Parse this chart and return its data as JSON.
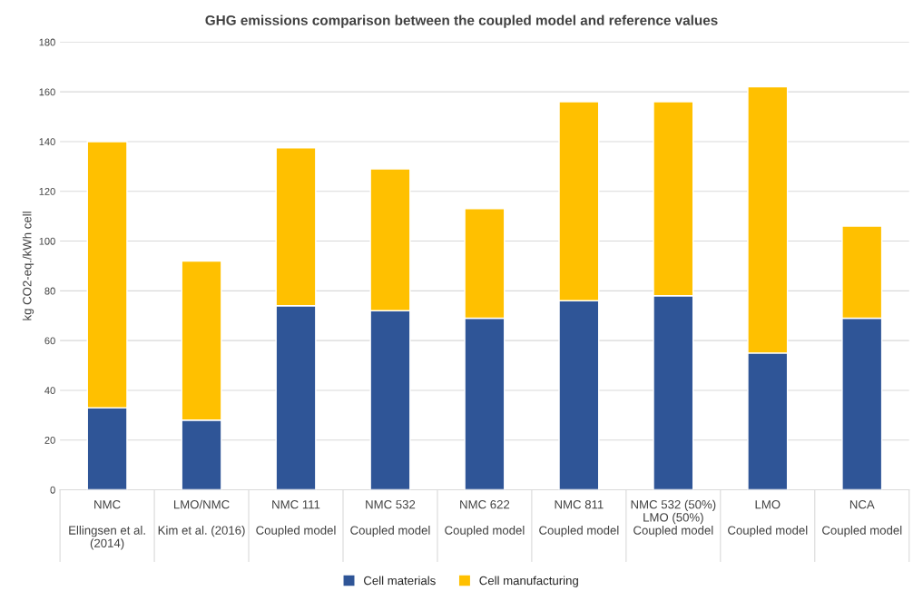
{
  "chart_data": {
    "type": "bar",
    "title": "GHG emissions comparison between the coupled model and reference values",
    "ylabel": "kg CO2-eq./kWh cell",
    "categories": [
      "NMC\n\nEllingsen et al.\n(2014)",
      "LMO/NMC\n\nKim et al. (2016)",
      "NMC 111\n\nCoupled model",
      "NMC 532\n\nCoupled model",
      "NMC 622\n\nCoupled model",
      "NMC 811\n\nCoupled model",
      "NMC 532 (50%)\nLMO (50%)\nCoupled model",
      "LMO\n\nCoupled model",
      "NCA\n\nCoupled model"
    ],
    "stacked": true,
    "series": [
      {
        "name": "Cell materials",
        "color": "#2f5597",
        "values": [
          33,
          28,
          74,
          72,
          69,
          76,
          78,
          55,
          69
        ]
      },
      {
        "name": "Cell manufacturing",
        "color": "#ffc000",
        "values": [
          107,
          64,
          63.5,
          57,
          44,
          80,
          78,
          107,
          37
        ]
      }
    ],
    "ylim": [
      0,
      180
    ],
    "yticks": [
      0,
      20,
      40,
      60,
      80,
      100,
      120,
      140,
      160,
      180
    ],
    "grid": "y",
    "legend": "bottom"
  }
}
